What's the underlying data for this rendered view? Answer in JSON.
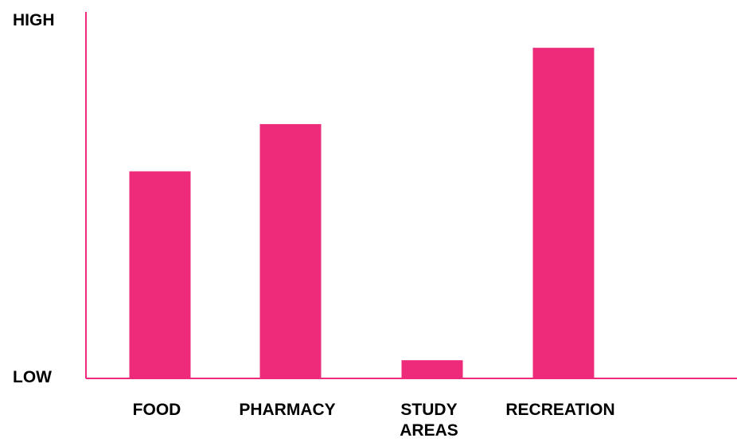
{
  "chart_data": {
    "type": "bar",
    "categories": [
      "FOOD",
      "PHARMACY",
      "STUDY AREAS",
      "RECREATION"
    ],
    "category_lines": [
      [
        "FOOD"
      ],
      [
        "PHARMACY"
      ],
      [
        "STUDY",
        "AREAS"
      ],
      [
        "RECREATION"
      ]
    ],
    "values": [
      57,
      70,
      5,
      91
    ],
    "ylim": [
      0,
      100
    ],
    "y_top_label": "HIGH",
    "y_bottom_label": "LOW",
    "title": "",
    "xlabel": "",
    "ylabel": "",
    "grid": false,
    "legend": "none",
    "colors": {
      "bar": "#ed2b7a",
      "axis": "#ed2b7a",
      "text": "#000000"
    }
  }
}
